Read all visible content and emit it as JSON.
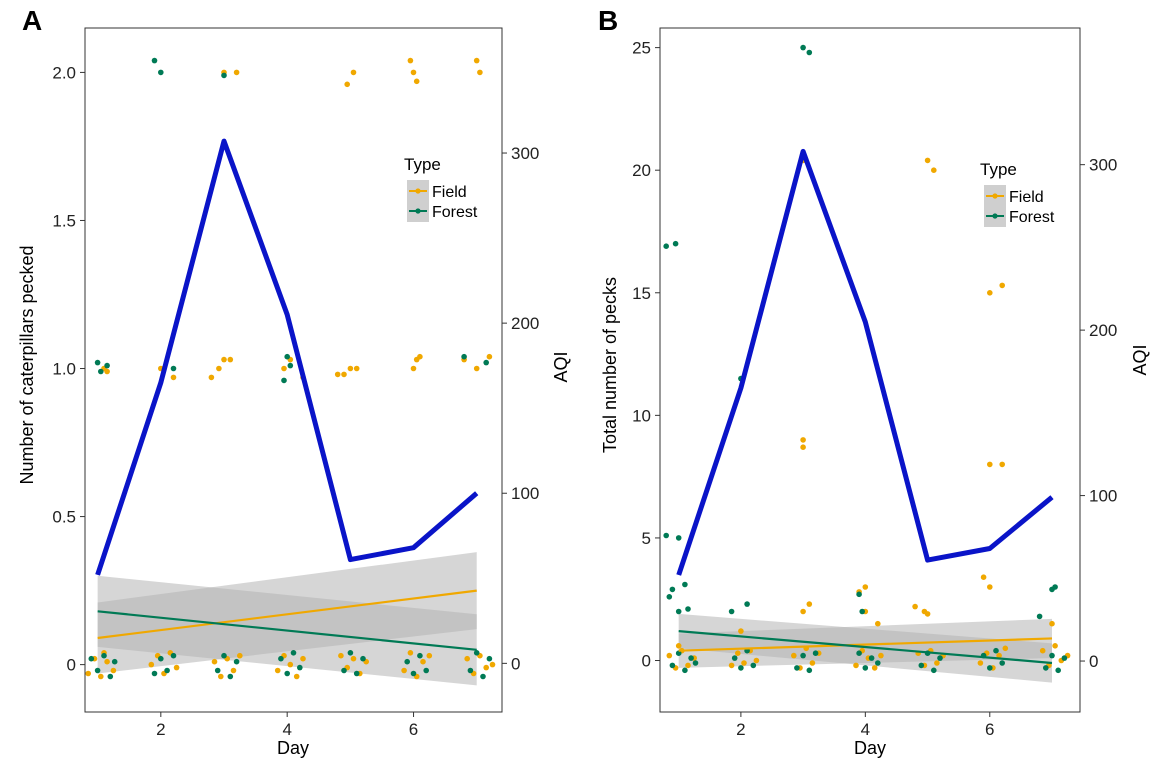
{
  "colors": {
    "field": "#f0a800",
    "forest": "#007a55",
    "aqi": "#0a14c8",
    "ribbon": "#b4b4b4"
  },
  "chart_data": [
    {
      "panel": "A",
      "type": "scatter",
      "xlabel": "Day",
      "ylabel": "Number of caterpillars pecked",
      "y2label": "AQI",
      "xlim": [
        0.8,
        7.4
      ],
      "ylim": [
        -0.16,
        2.15
      ],
      "y2lim": [
        -28.6,
        373.5
      ],
      "xticks": [
        2,
        4,
        6
      ],
      "yticks": [
        0,
        0.5,
        1.0,
        1.5,
        2.0
      ],
      "ytick_labels": [
        "0",
        "0.5",
        "1.0",
        "1.5",
        "2.0"
      ],
      "y2ticks": [
        0,
        100,
        200,
        300
      ],
      "legend": {
        "title": "Type",
        "entries": [
          "Field",
          "Forest"
        ],
        "position": "right"
      },
      "aqi_line": {
        "x": [
          1,
          2,
          3,
          4,
          5,
          6,
          7
        ],
        "y": [
          52,
          165,
          307,
          205,
          61,
          68,
          100
        ]
      },
      "trend": {
        "field": {
          "x": [
            1,
            7
          ],
          "y": [
            0.09,
            0.25
          ],
          "ci_lower": [
            -0.03,
            0.12
          ],
          "ci_upper": [
            0.21,
            0.38
          ]
        },
        "forest": {
          "x": [
            1,
            7
          ],
          "y": [
            0.18,
            0.05
          ],
          "ci_lower": [
            0.06,
            -0.07
          ],
          "ci_upper": [
            0.3,
            0.17
          ]
        }
      },
      "points": {
        "field": [
          [
            1.1,
            1.0
          ],
          [
            1.15,
            0.99
          ],
          [
            2.0,
            1.0
          ],
          [
            2.2,
            0.97
          ],
          [
            2.8,
            0.97
          ],
          [
            2.92,
            1.0
          ],
          [
            3.0,
            1.03
          ],
          [
            3.1,
            1.03
          ],
          [
            3.95,
            1.0
          ],
          [
            4.05,
            1.03
          ],
          [
            4.25,
            0.97
          ],
          [
            4.8,
            0.98
          ],
          [
            4.9,
            0.98
          ],
          [
            5.0,
            1.0
          ],
          [
            5.1,
            1.0
          ],
          [
            6.0,
            1.0
          ],
          [
            6.05,
            1.03
          ],
          [
            6.1,
            1.04
          ],
          [
            6.8,
            1.03
          ],
          [
            7.0,
            1.0
          ],
          [
            7.2,
            1.04
          ],
          [
            3.0,
            2.0
          ],
          [
            3.2,
            2.0
          ],
          [
            4.95,
            1.96
          ],
          [
            5.05,
            2.0
          ],
          [
            5.95,
            2.04
          ],
          [
            6.0,
            2.0
          ],
          [
            6.05,
            1.97
          ],
          [
            7.0,
            2.04
          ],
          [
            7.05,
            2.0
          ],
          [
            0.85,
            -0.03
          ],
          [
            0.95,
            0.02
          ],
          [
            1.05,
            -0.04
          ],
          [
            1.15,
            0.01
          ],
          [
            1.25,
            -0.02
          ],
          [
            1.1,
            0.04
          ],
          [
            1.85,
            0.0
          ],
          [
            1.95,
            0.03
          ],
          [
            2.05,
            -0.03
          ],
          [
            2.15,
            0.04
          ],
          [
            2.25,
            -0.01
          ],
          [
            2.85,
            0.01
          ],
          [
            2.95,
            -0.04
          ],
          [
            3.05,
            0.02
          ],
          [
            3.15,
            -0.02
          ],
          [
            3.25,
            0.03
          ],
          [
            3.85,
            -0.02
          ],
          [
            3.95,
            0.03
          ],
          [
            4.05,
            0.0
          ],
          [
            4.15,
            -0.04
          ],
          [
            4.25,
            0.02
          ],
          [
            4.85,
            0.03
          ],
          [
            4.95,
            -0.01
          ],
          [
            5.05,
            0.02
          ],
          [
            5.15,
            -0.03
          ],
          [
            5.25,
            0.01
          ],
          [
            5.85,
            -0.02
          ],
          [
            5.95,
            0.04
          ],
          [
            6.05,
            -0.04
          ],
          [
            6.15,
            0.01
          ],
          [
            6.25,
            0.03
          ],
          [
            6.85,
            0.02
          ],
          [
            6.95,
            -0.03
          ],
          [
            7.05,
            0.03
          ],
          [
            7.15,
            -0.01
          ],
          [
            7.25,
            0.0
          ]
        ],
        "forest": [
          [
            1.0,
            1.02
          ],
          [
            1.05,
            0.99
          ],
          [
            1.15,
            1.01
          ],
          [
            2.2,
            1.0
          ],
          [
            3.95,
            0.96
          ],
          [
            4.0,
            1.04
          ],
          [
            4.05,
            1.01
          ],
          [
            6.8,
            1.04
          ],
          [
            7.15,
            1.02
          ],
          [
            1.9,
            2.04
          ],
          [
            2.0,
            2.0
          ],
          [
            3.0,
            1.99
          ],
          [
            0.9,
            0.02
          ],
          [
            1.0,
            -0.02
          ],
          [
            1.1,
            0.03
          ],
          [
            1.2,
            -0.04
          ],
          [
            1.27,
            0.01
          ],
          [
            1.9,
            -0.03
          ],
          [
            2.0,
            0.02
          ],
          [
            2.1,
            -0.02
          ],
          [
            2.2,
            0.03
          ],
          [
            2.9,
            -0.02
          ],
          [
            3.0,
            0.03
          ],
          [
            3.1,
            -0.04
          ],
          [
            3.2,
            0.01
          ],
          [
            3.9,
            0.02
          ],
          [
            4.0,
            -0.03
          ],
          [
            4.1,
            0.04
          ],
          [
            4.2,
            -0.01
          ],
          [
            4.9,
            -0.02
          ],
          [
            5.0,
            0.04
          ],
          [
            5.1,
            -0.03
          ],
          [
            5.2,
            0.02
          ],
          [
            5.9,
            0.01
          ],
          [
            6.0,
            -0.03
          ],
          [
            6.1,
            0.03
          ],
          [
            6.2,
            -0.02
          ],
          [
            6.9,
            -0.02
          ],
          [
            7.0,
            0.04
          ],
          [
            7.1,
            -0.04
          ],
          [
            7.2,
            0.02
          ]
        ]
      }
    },
    {
      "panel": "B",
      "type": "scatter",
      "xlabel": "Day",
      "ylabel": "Total number of pecks",
      "y2label": "AQI",
      "xlim": [
        0.7,
        7.45
      ],
      "ylim": [
        -2.1,
        25.8
      ],
      "y2lim": [
        -30.8,
        382.6
      ],
      "xticks": [
        2,
        4,
        6
      ],
      "yticks": [
        0,
        5,
        10,
        15,
        20,
        25
      ],
      "ytick_labels": [
        "0",
        "5",
        "10",
        "15",
        "20",
        "25"
      ],
      "y2ticks": [
        0,
        100,
        200,
        300
      ],
      "legend": {
        "title": "Type",
        "entries": [
          "Field",
          "Forest"
        ],
        "position": "right"
      },
      "aqi_line": {
        "x": [
          1,
          2,
          3,
          4,
          5,
          6,
          7
        ],
        "y": [
          52,
          165,
          308,
          205,
          61,
          68,
          99
        ]
      },
      "trend": {
        "field": {
          "x": [
            1,
            7
          ],
          "y": [
            0.4,
            0.9
          ],
          "ci_lower": [
            -0.3,
            0.1
          ],
          "ci_upper": [
            1.1,
            1.7
          ]
        },
        "forest": {
          "x": [
            1,
            7
          ],
          "y": [
            1.2,
            -0.1
          ],
          "ci_lower": [
            0.5,
            -0.9
          ],
          "ci_upper": [
            1.9,
            0.7
          ]
        }
      },
      "points": {
        "field": [
          [
            3.0,
            20.4
          ],
          [
            3.0,
            9.0
          ],
          [
            3.0,
            8.7
          ],
          [
            5.0,
            20.4
          ],
          [
            5.1,
            20.0
          ],
          [
            6.0,
            15.0
          ],
          [
            6.2,
            15.3
          ],
          [
            6.0,
            8.0
          ],
          [
            6.2,
            8.0
          ],
          [
            3.0,
            2.0
          ],
          [
            3.1,
            2.3
          ],
          [
            3.9,
            2.8
          ],
          [
            4.0,
            3.0
          ],
          [
            4.0,
            2.0
          ],
          [
            4.2,
            1.5
          ],
          [
            4.8,
            2.2
          ],
          [
            4.95,
            2.0
          ],
          [
            5.0,
            1.9
          ],
          [
            5.9,
            3.4
          ],
          [
            6.0,
            3.0
          ],
          [
            7.0,
            1.5
          ],
          [
            2.0,
            1.2
          ],
          [
            1.0,
            0.6
          ],
          [
            0.85,
            0.2
          ],
          [
            0.95,
            -0.3
          ],
          [
            1.05,
            0.4
          ],
          [
            1.15,
            -0.2
          ],
          [
            1.25,
            0.1
          ],
          [
            1.85,
            -0.2
          ],
          [
            1.95,
            0.3
          ],
          [
            2.05,
            -0.1
          ],
          [
            2.15,
            0.4
          ],
          [
            2.25,
            0.0
          ],
          [
            2.85,
            0.2
          ],
          [
            2.95,
            -0.3
          ],
          [
            3.05,
            0.5
          ],
          [
            3.15,
            -0.1
          ],
          [
            3.25,
            0.3
          ],
          [
            3.85,
            -0.2
          ],
          [
            3.95,
            0.4
          ],
          [
            4.05,
            0.1
          ],
          [
            4.15,
            -0.3
          ],
          [
            4.25,
            0.2
          ],
          [
            4.85,
            0.3
          ],
          [
            4.95,
            -0.2
          ],
          [
            5.05,
            0.4
          ],
          [
            5.15,
            -0.1
          ],
          [
            5.25,
            0.2
          ],
          [
            5.85,
            -0.1
          ],
          [
            5.95,
            0.3
          ],
          [
            6.05,
            -0.3
          ],
          [
            6.15,
            0.2
          ],
          [
            6.25,
            0.5
          ],
          [
            6.85,
            0.4
          ],
          [
            6.95,
            -0.2
          ],
          [
            7.05,
            0.6
          ],
          [
            7.15,
            0.0
          ],
          [
            7.25,
            0.2
          ]
        ],
        "forest": [
          [
            0.8,
            16.9
          ],
          [
            0.95,
            17.0
          ],
          [
            0.8,
            5.1
          ],
          [
            1.0,
            5.0
          ],
          [
            2.0,
            11.5
          ],
          [
            3.0,
            25.0
          ],
          [
            3.1,
            24.8
          ],
          [
            0.85,
            2.6
          ],
          [
            0.9,
            2.9
          ],
          [
            1.0,
            2.0
          ],
          [
            1.1,
            3.1
          ],
          [
            1.15,
            2.1
          ],
          [
            1.85,
            2.0
          ],
          [
            2.1,
            2.3
          ],
          [
            3.9,
            2.7
          ],
          [
            3.95,
            2.0
          ],
          [
            6.8,
            1.8
          ],
          [
            7.0,
            2.9
          ],
          [
            7.05,
            3.0
          ],
          [
            0.9,
            -0.2
          ],
          [
            1.0,
            0.3
          ],
          [
            1.1,
            -0.4
          ],
          [
            1.2,
            0.1
          ],
          [
            1.27,
            -0.1
          ],
          [
            1.9,
            0.1
          ],
          [
            2.0,
            -0.3
          ],
          [
            2.1,
            0.4
          ],
          [
            2.2,
            -0.2
          ],
          [
            2.9,
            -0.3
          ],
          [
            3.0,
            0.2
          ],
          [
            3.1,
            -0.4
          ],
          [
            3.2,
            0.3
          ],
          [
            3.9,
            0.3
          ],
          [
            4.0,
            -0.3
          ],
          [
            4.1,
            0.1
          ],
          [
            4.2,
            -0.1
          ],
          [
            4.9,
            -0.2
          ],
          [
            5.0,
            0.3
          ],
          [
            5.1,
            -0.4
          ],
          [
            5.2,
            0.1
          ],
          [
            5.9,
            0.2
          ],
          [
            6.0,
            -0.3
          ],
          [
            6.1,
            0.4
          ],
          [
            6.2,
            -0.1
          ],
          [
            6.9,
            -0.3
          ],
          [
            7.0,
            0.2
          ],
          [
            7.1,
            -0.4
          ],
          [
            7.2,
            0.1
          ]
        ]
      }
    }
  ]
}
